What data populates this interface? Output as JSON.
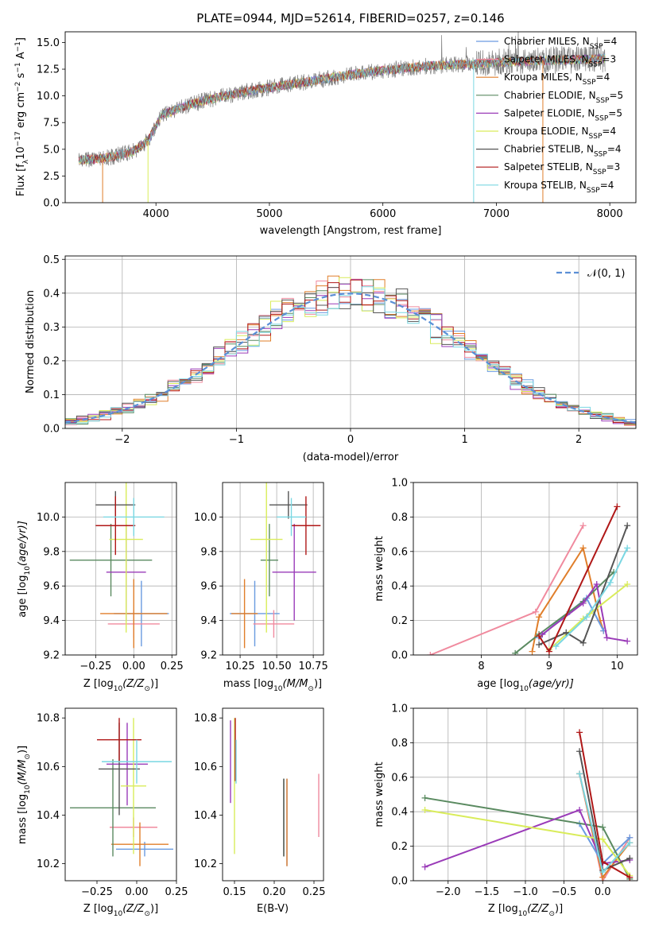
{
  "figure_title": "PLATE=0944, MJD=52614, FIBERID=0257, z=0.146",
  "colors": {
    "Chabrier MILES": "#6a9be0",
    "Salpeter MILES": "#f08a9e",
    "Kroupa MILES": "#e07e2a",
    "Chabrier ELODIE": "#5a8a60",
    "Salpeter ELODIE": "#9a3bb8",
    "Kroupa ELODIE": "#d9ec5a",
    "Chabrier STELIB": "#555555",
    "Salpeter STELIB": "#b01818",
    "Kroupa STELIB": "#7ad7e2"
  },
  "chart_data": [
    {
      "id": "spectrum",
      "type": "line",
      "title": "PLATE=0944, MJD=52614, FIBERID=0257, z=0.146",
      "xlabel": "wavelength [Angstrom, rest frame]",
      "ylabel_parts": [
        "Flux [f",
        "λ",
        "10",
        "−17",
        " erg cm",
        "−2",
        " s",
        "−1",
        " A",
        "−1",
        "]"
      ],
      "xlim": [
        3200,
        8230
      ],
      "ylim": [
        0,
        16
      ],
      "xticks": [
        4000,
        5000,
        6000,
        7000,
        8000
      ],
      "yticks": [
        0.0,
        2.5,
        5.0,
        7.5,
        10.0,
        12.5,
        15.0
      ],
      "ytick_labels": [
        "0.0",
        "2.5",
        "5.0",
        "7.5",
        "10.0",
        "12.5",
        "15.0"
      ],
      "legend_position": "upper right",
      "grid": false,
      "continuum": [
        [
          3330,
          4.0
        ],
        [
          3500,
          4.1
        ],
        [
          3650,
          4.4
        ],
        [
          3800,
          4.8
        ],
        [
          3930,
          5.8
        ],
        [
          4050,
          8.2
        ],
        [
          4300,
          9.2
        ],
        [
          4600,
          10.0
        ],
        [
          4900,
          10.6
        ],
        [
          5200,
          11.1
        ],
        [
          5600,
          11.8
        ],
        [
          6000,
          12.4
        ],
        [
          6400,
          12.8
        ],
        [
          6800,
          13.0
        ],
        [
          7100,
          13.2
        ],
        [
          7400,
          13.3
        ],
        [
          7700,
          13.4
        ],
        [
          7950,
          13.5
        ]
      ],
      "observed_range": [
        3320,
        7960
      ],
      "series": [
        {
          "name": "Chabrier MILES",
          "label_main": "Chabrier MILES, N",
          "label_sub": "SSP",
          "label_tail": "=4"
        },
        {
          "name": "Salpeter MILES",
          "label_main": "Salpeter MILES, N",
          "label_sub": "SSP",
          "label_tail": "=3"
        },
        {
          "name": "Kroupa MILES",
          "label_main": "Kroupa MILES, N",
          "label_sub": "SSP",
          "label_tail": "=4"
        },
        {
          "name": "Chabrier ELODIE",
          "label_main": "Chabrier ELODIE, N",
          "label_sub": "SSP",
          "label_tail": "=5"
        },
        {
          "name": "Salpeter ELODIE",
          "label_main": "Salpeter ELODIE, N",
          "label_sub": "SSP",
          "label_tail": "=5"
        },
        {
          "name": "Kroupa ELODIE",
          "label_main": "Kroupa ELODIE, N",
          "label_sub": "SSP",
          "label_tail": "=4"
        },
        {
          "name": "Chabrier STELIB",
          "label_main": "Chabrier STELIB, N",
          "label_sub": "SSP",
          "label_tail": "=4"
        },
        {
          "name": "Salpeter STELIB",
          "label_main": "Salpeter STELIB, N",
          "label_sub": "SSP",
          "label_tail": "=3"
        },
        {
          "name": "Kroupa STELIB",
          "label_main": "Kroupa STELIB, N",
          "label_sub": "SSP",
          "label_tail": "=4"
        }
      ]
    },
    {
      "id": "residuals",
      "type": "histogram",
      "xlabel": "(data-model)/error",
      "ylabel": "Normed distribution",
      "xlim": [
        -2.5,
        2.5
      ],
      "ylim": [
        0,
        0.51
      ],
      "xticks": [
        -2,
        -1,
        0,
        1,
        2
      ],
      "xtick_labels": [
        "−2",
        "−1",
        "0",
        "1",
        "2"
      ],
      "yticks": [
        0.0,
        0.1,
        0.2,
        0.3,
        0.4,
        0.5
      ],
      "ytick_labels": [
        "0.0",
        "0.1",
        "0.2",
        "0.3",
        "0.4",
        "0.5"
      ],
      "grid": true,
      "legend_position": "upper right",
      "reference_curve": {
        "name": "N(0,1)",
        "color": "#5b8fd6"
      },
      "bin_edges_range": [
        -2.5,
        2.5
      ],
      "n_bins": 50
    },
    {
      "id": "age_vs_Z",
      "type": "scatter",
      "xlabel_main": "Z [log",
      "xlabel_sub": "10",
      "xlabel_tail": "(Z/Z",
      "xlabel_end": ")]",
      "ylabel_main": "age  [log",
      "ylabel_sub": "10",
      "ylabel_tail": "(age/yr)]",
      "xlim": [
        -0.45,
        0.28
      ],
      "ylim": [
        9.2,
        10.2
      ],
      "xticks": [
        -0.25,
        0.0,
        0.25
      ],
      "xtick_labels": [
        "−0.25",
        "0.00",
        "0.25"
      ],
      "yticks": [
        9.2,
        9.4,
        9.6,
        9.8,
        10.0
      ],
      "ytick_labels": [
        "9.2",
        "9.4",
        "9.6",
        "9.8",
        "10.0"
      ],
      "grid": true,
      "points": [
        {
          "series": "Chabrier MILES",
          "x": 0.05,
          "xerr": 0.18,
          "y": 9.44,
          "yerr": 0.19
        },
        {
          "series": "Salpeter MILES",
          "x": 0.0,
          "xerr": 0.17,
          "y": 9.38,
          "yerr": 0.08
        },
        {
          "series": "Kroupa MILES",
          "x": 0.0,
          "xerr": 0.22,
          "y": 9.44,
          "yerr": 0.2
        },
        {
          "series": "Chabrier ELODIE",
          "x": -0.15,
          "xerr": 0.27,
          "y": 9.75,
          "yerr": 0.21
        },
        {
          "series": "Salpeter ELODIE",
          "x": -0.05,
          "xerr": 0.13,
          "y": 9.68,
          "yerr": 0.28
        },
        {
          "series": "Kroupa ELODIE",
          "x": -0.05,
          "xerr": 0.11,
          "y": 9.87,
          "yerr": 0.54
        },
        {
          "series": "Chabrier STELIB",
          "x": -0.12,
          "xerr": 0.13,
          "y": 10.07,
          "yerr": 0.08
        },
        {
          "series": "Salpeter STELIB",
          "x": -0.12,
          "xerr": 0.13,
          "y": 9.95,
          "yerr": 0.17
        },
        {
          "series": "Kroupa STELIB",
          "x": 0.0,
          "xerr": 0.2,
          "y": 10.0,
          "yerr": 0.11
        }
      ]
    },
    {
      "id": "age_vs_mass",
      "type": "scatter",
      "xlabel_main": "mass [log",
      "xlabel_sub": "10",
      "xlabel_tail": "(M/M",
      "xlabel_end": ")]",
      "xlim": [
        10.13,
        10.82
      ],
      "ylim": [
        9.2,
        10.2
      ],
      "xticks": [
        10.25,
        10.5,
        10.75
      ],
      "xtick_labels": [
        "10.25",
        "10.50",
        "10.75"
      ],
      "yticks": [
        9.2,
        9.4,
        9.6,
        9.8,
        10.0
      ],
      "ytick_labels": [
        "9.2",
        "9.4",
        "9.6",
        "9.8",
        "10.0"
      ],
      "grid": true,
      "points": [
        {
          "series": "Chabrier MILES",
          "x": 10.35,
          "xerr": 0.17,
          "y": 9.44,
          "yerr": 0.19
        },
        {
          "series": "Salpeter MILES",
          "x": 10.48,
          "xerr": 0.14,
          "y": 9.38,
          "yerr": 0.08
        },
        {
          "series": "Kroupa MILES",
          "x": 10.28,
          "xerr": 0.09,
          "y": 9.44,
          "yerr": 0.2
        },
        {
          "series": "Chabrier ELODIE",
          "x": 10.45,
          "xerr": 0.06,
          "y": 9.75,
          "yerr": 0.21
        },
        {
          "series": "Salpeter ELODIE",
          "x": 10.62,
          "xerr": 0.15,
          "y": 9.68,
          "yerr": 0.28
        },
        {
          "series": "Kroupa ELODIE",
          "x": 10.43,
          "xerr": 0.11,
          "y": 9.87,
          "yerr": 0.54
        },
        {
          "series": "Chabrier STELIB",
          "x": 10.58,
          "xerr": 0.13,
          "y": 10.07,
          "yerr": 0.08
        },
        {
          "series": "Salpeter STELIB",
          "x": 10.7,
          "xerr": 0.1,
          "y": 9.95,
          "yerr": 0.17
        },
        {
          "series": "Kroupa STELIB",
          "x": 10.6,
          "xerr": 0.1,
          "y": 10.0,
          "yerr": 0.11
        }
      ]
    },
    {
      "id": "weight_vs_age",
      "type": "line",
      "xlabel_main": "age  [log",
      "xlabel_sub": "10",
      "xlabel_tail": "(age/yr)]",
      "ylabel": "mass weight",
      "xlim": [
        7.0,
        10.3
      ],
      "ylim": [
        0.0,
        1.0
      ],
      "xticks": [
        8,
        9,
        10
      ],
      "xtick_labels": [
        "8",
        "9",
        "10"
      ],
      "yticks": [
        0.0,
        0.2,
        0.4,
        0.6,
        0.8,
        1.0
      ],
      "ytick_labels": [
        "0.0",
        "0.2",
        "0.4",
        "0.6",
        "0.8",
        "1.0"
      ],
      "grid": true,
      "series": [
        {
          "name": "Salpeter MILES",
          "x": [
            7.25,
            8.8,
            9.5
          ],
          "y": [
            0.0,
            0.25,
            0.75
          ]
        },
        {
          "name": "Kroupa MILES",
          "x": [
            8.75,
            8.85,
            9.5,
            9.75,
            9.8
          ],
          "y": [
            0.02,
            0.22,
            0.62,
            0.2,
            0.14
          ]
        },
        {
          "name": "Chabrier MILES",
          "x": [
            8.85,
            9.3,
            9.55,
            9.8
          ],
          "y": [
            0.1,
            0.25,
            0.33,
            0.14
          ]
        },
        {
          "name": "Chabrier ELODIE",
          "x": [
            8.5,
            8.85,
            9.5,
            9.95
          ],
          "y": [
            0.01,
            0.12,
            0.31,
            0.48
          ]
        },
        {
          "name": "Salpeter ELODIE",
          "x": [
            8.9,
            9.5,
            9.7,
            9.85,
            10.15
          ],
          "y": [
            0.12,
            0.3,
            0.41,
            0.1,
            0.08
          ]
        },
        {
          "name": "Kroupa ELODIE",
          "x": [
            9.0,
            9.5,
            9.6,
            10.15
          ],
          "y": [
            0.03,
            0.21,
            0.24,
            0.41
          ]
        },
        {
          "name": "Chabrier STELIB",
          "x": [
            8.85,
            9.25,
            9.5,
            10.15
          ],
          "y": [
            0.06,
            0.13,
            0.07,
            0.75
          ]
        },
        {
          "name": "Salpeter STELIB",
          "x": [
            8.85,
            9.0,
            10.0
          ],
          "y": [
            0.11,
            0.02,
            0.86
          ]
        },
        {
          "name": "Kroupa STELIB",
          "x": [
            9.1,
            9.55,
            9.9,
            10.15
          ],
          "y": [
            0.05,
            0.22,
            0.42,
            0.62
          ]
        }
      ]
    },
    {
      "id": "mass_vs_Z",
      "type": "scatter",
      "xlabel_main": "Z [log",
      "xlabel_sub": "10",
      "xlabel_tail": "(Z/Z",
      "xlabel_end": ")]",
      "ylabel_main": "mass [log",
      "ylabel_sub": "10",
      "ylabel_tail": "(M/M",
      "ylabel_end": ")]",
      "xlim": [
        -0.45,
        0.25
      ],
      "ylim": [
        10.13,
        10.84
      ],
      "xticks": [
        -0.25,
        0.0,
        0.25
      ],
      "xtick_labels": [
        "−0.25",
        "0.00",
        "0.25"
      ],
      "yticks": [
        10.2,
        10.4,
        10.6,
        10.8
      ],
      "ytick_labels": [
        "10.2",
        "10.4",
        "10.6",
        "10.8"
      ],
      "grid": false,
      "points": [
        {
          "series": "Chabrier MILES",
          "x": 0.05,
          "xerr": 0.18,
          "y": 10.26,
          "yerr": 0.03
        },
        {
          "series": "Salpeter MILES",
          "x": -0.02,
          "xerr": 0.15,
          "y": 10.35,
          "yerr": 0.04
        },
        {
          "series": "Kroupa MILES",
          "x": 0.02,
          "xerr": 0.18,
          "y": 10.28,
          "yerr": 0.09
        },
        {
          "series": "Chabrier ELODIE",
          "x": -0.15,
          "xerr": 0.27,
          "y": 10.43,
          "yerr": 0.2
        },
        {
          "series": "Salpeter ELODIE",
          "x": -0.06,
          "xerr": 0.13,
          "y": 10.61,
          "yerr": 0.17
        },
        {
          "series": "Kroupa ELODIE",
          "x": -0.02,
          "xerr": 0.08,
          "y": 10.52,
          "yerr": 0.28
        },
        {
          "series": "Chabrier STELIB",
          "x": -0.11,
          "xerr": 0.13,
          "y": 10.59,
          "yerr": 0.19
        },
        {
          "series": "Salpeter STELIB",
          "x": -0.11,
          "xerr": 0.14,
          "y": 10.71,
          "yerr": 0.09
        },
        {
          "series": "Kroupa STELIB",
          "x": 0.0,
          "xerr": 0.22,
          "y": 10.62,
          "yerr": 0.09
        }
      ]
    },
    {
      "id": "mass_vs_ebv",
      "type": "scatter",
      "xlabel": "E(B-V)",
      "xlim": [
        0.135,
        0.262
      ],
      "ylim": [
        10.13,
        10.84
      ],
      "xticks": [
        0.15,
        0.2,
        0.25
      ],
      "xtick_labels": [
        "0.15",
        "0.20",
        "0.25"
      ],
      "yticks": [
        10.2,
        10.4,
        10.6,
        10.8
      ],
      "ytick_labels": [
        "10.2",
        "10.4",
        "10.6",
        "10.8"
      ],
      "grid": false,
      "points": [
        {
          "series": "Chabrier MILES",
          "x": 0.216,
          "y": 10.37,
          "yerr": 0.18
        },
        {
          "series": "Salpeter MILES",
          "x": 0.256,
          "y": 10.44,
          "yerr": 0.13
        },
        {
          "series": "Kroupa MILES",
          "x": 0.216,
          "y": 10.37,
          "yerr": 0.18
        },
        {
          "series": "Chabrier ELODIE",
          "x": 0.212,
          "y": 10.39,
          "yerr": 0.16
        },
        {
          "series": "Salpeter ELODIE",
          "x": 0.145,
          "y": 10.62,
          "yerr": 0.17
        },
        {
          "series": "Kroupa ELODIE",
          "x": 0.15,
          "y": 10.52,
          "yerr": 0.28
        },
        {
          "series": "Chabrier STELIB",
          "x": 0.212,
          "y": 10.39,
          "yerr": 0.16
        },
        {
          "series": "Salpeter STELIB",
          "x": 0.151,
          "y": 10.67,
          "yerr": 0.13
        },
        {
          "series": "Kroupa STELIB",
          "x": 0.152,
          "y": 10.62,
          "yerr": 0.09
        }
      ]
    },
    {
      "id": "weight_vs_Z",
      "type": "line",
      "xlabel_main": "Z [log",
      "xlabel_sub": "10",
      "xlabel_tail": "(Z/Z",
      "xlabel_end": ")]",
      "ylabel": "mass weight",
      "xlim": [
        -2.45,
        0.45
      ],
      "ylim": [
        0.0,
        1.0
      ],
      "xticks": [
        -2.0,
        -1.5,
        -1.0,
        -0.5,
        0.0
      ],
      "xtick_labels": [
        "−2.0",
        "−1.5",
        "−1.0",
        "−0.5",
        "0.0"
      ],
      "yticks": [
        0.0,
        0.2,
        0.4,
        0.6,
        0.8,
        1.0
      ],
      "ytick_labels": [
        "0.0",
        "0.2",
        "0.4",
        "0.6",
        "0.8",
        "1.0"
      ],
      "grid": true,
      "series": [
        {
          "name": "Salpeter MILES",
          "x": [
            -0.3,
            0.0,
            0.35
          ],
          "y": [
            0.62,
            0.0,
            0.25
          ]
        },
        {
          "name": "Kroupa MILES",
          "x": [
            -0.3,
            0.0,
            0.35
          ],
          "y": [
            0.62,
            0.02,
            0.22
          ]
        },
        {
          "name": "Chabrier MILES",
          "x": [
            -0.3,
            0.0,
            0.35
          ],
          "y": [
            0.33,
            0.1,
            0.25
          ]
        },
        {
          "name": "Chabrier ELODIE",
          "x": [
            -2.3,
            0.0,
            0.35
          ],
          "y": [
            0.48,
            0.31,
            0.01
          ]
        },
        {
          "name": "Salpeter ELODIE",
          "x": [
            -2.3,
            -0.3,
            0.0,
            0.35
          ],
          "y": [
            0.08,
            0.41,
            0.1,
            0.12
          ]
        },
        {
          "name": "Kroupa ELODIE",
          "x": [
            -2.3,
            0.0,
            0.35
          ],
          "y": [
            0.41,
            0.24,
            0.03
          ]
        },
        {
          "name": "Chabrier STELIB",
          "x": [
            -0.3,
            0.0,
            0.35
          ],
          "y": [
            0.75,
            0.06,
            0.13
          ]
        },
        {
          "name": "Salpeter STELIB",
          "x": [
            -0.3,
            0.0,
            0.35
          ],
          "y": [
            0.86,
            0.11,
            0.02
          ]
        },
        {
          "name": "Kroupa STELIB",
          "x": [
            -0.3,
            0.0,
            0.35
          ],
          "y": [
            0.62,
            0.05,
            0.22
          ]
        }
      ]
    }
  ]
}
